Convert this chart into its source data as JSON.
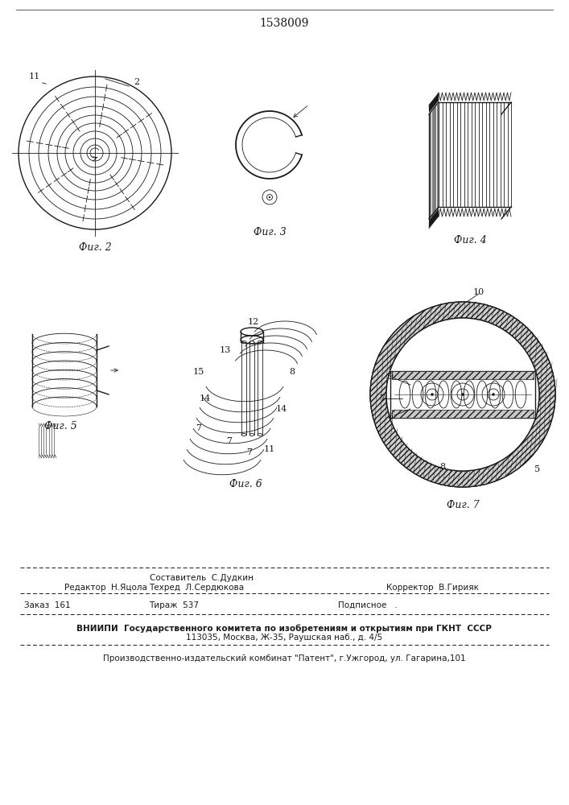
{
  "title": "1538009",
  "bg_color": "#ffffff",
  "line_color": "#1a1a1a",
  "fig2_label": "Фиг. 2",
  "fig3_label": "Фиг. 3",
  "fig4_label": "Фиг. 4",
  "fig5_label": "Фиг. 5",
  "fig6_label": "Фиг. 6",
  "fig7_label": "Фиг. 7",
  "footer_line1": "Составитель  С.Дудкин",
  "footer_col1_r1": "Редактор  Н.Яцола",
  "footer_col2_r1": "Техред  Л.Сердюкова",
  "footer_col3_r1": "Корректор  В.Гирияк",
  "footer_col1_r2": "Заказ  161",
  "footer_col2_r2": "Тираж  537",
  "footer_col3_r2": "Подписное   .",
  "footer_vnipi": "ВНИИПИ  Государственного комитета по изобретениям и открытиям при ГКНТ  СССР",
  "footer_addr": "113035, Москва, Ж-35, Раушская наб., д. 4/5",
  "footer_patent": "Производственно-издательский комбинат \"Патент\", г.Ужгород, ул. Гагарина,101"
}
